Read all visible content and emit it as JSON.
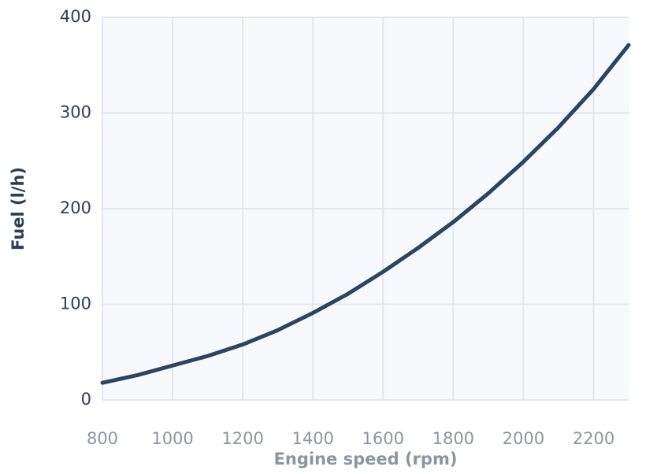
{
  "chart_data": {
    "type": "line",
    "x_label": "Engine speed (rpm)",
    "y_label": "Fuel (l/h)",
    "x": [
      800,
      900,
      1000,
      1100,
      1200,
      1300,
      1400,
      1500,
      1600,
      1700,
      1800,
      1900,
      2000,
      2100,
      2200,
      2300
    ],
    "series": [
      {
        "name": "Fuel",
        "color": "#2a4562",
        "values": [
          18,
          26,
          36,
          46,
          58,
          73,
          91,
          111,
          134,
          159,
          186,
          216,
          249,
          285,
          325,
          371
        ]
      }
    ],
    "xlim": [
      800,
      2300
    ],
    "xticks": [
      800,
      1000,
      1200,
      1400,
      1600,
      1800,
      2000,
      2200
    ],
    "ylim": [
      0,
      400
    ],
    "yticks": [
      0,
      100,
      200,
      300,
      400
    ],
    "grid": true
  }
}
